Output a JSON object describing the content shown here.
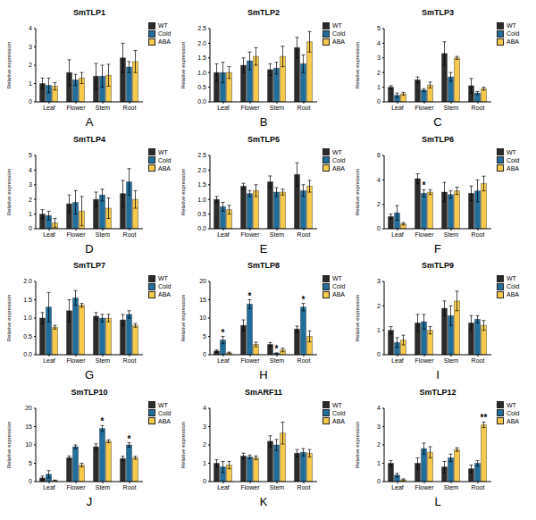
{
  "chart_data": [
    {
      "type": "bar",
      "title": "SmTLP1",
      "panel": "A",
      "y_label": "Relative expression",
      "categories": [
        "Leaf",
        "Flower",
        "Stem",
        "Root"
      ],
      "ylim": [
        0,
        4
      ],
      "yticks": [
        0,
        1,
        2,
        3,
        4
      ],
      "legend": "upper right",
      "series": [
        {
          "name": "WT",
          "color": "#2b2b2b",
          "values": [
            1.0,
            1.6,
            1.4,
            2.4
          ],
          "errors": [
            0.3,
            0.7,
            0.7,
            0.8
          ]
        },
        {
          "name": "Cold",
          "color": "#1f6e9c",
          "values": [
            0.9,
            1.2,
            1.4,
            1.9
          ],
          "errors": [
            0.4,
            0.3,
            0.6,
            0.3
          ]
        },
        {
          "name": "ABA",
          "color": "#f6c94a",
          "values": [
            0.85,
            1.3,
            1.45,
            2.2
          ],
          "errors": [
            0.2,
            0.3,
            0.6,
            0.6
          ]
        }
      ],
      "annotations": []
    },
    {
      "type": "bar",
      "title": "SmTLP2",
      "panel": "B",
      "y_label": "Relative expression",
      "categories": [
        "Leaf",
        "Flower",
        "Stem",
        "Root"
      ],
      "ylim": [
        0,
        2.5
      ],
      "yticks": [
        {
          "value": 0,
          "label": "0.0"
        },
        0.5,
        {
          "value": 1,
          "label": "1.0"
        },
        1.5,
        {
          "value": 2,
          "label": "2.0"
        },
        2.5
      ],
      "legend": "upper right",
      "series": [
        {
          "name": "WT",
          "color": "#2b2b2b",
          "values": [
            1.0,
            1.25,
            1.1,
            1.85
          ],
          "errors": [
            0.3,
            0.25,
            0.2,
            0.35
          ]
        },
        {
          "name": "Cold",
          "color": "#1f6e9c",
          "values": [
            1.0,
            1.4,
            1.15,
            1.3
          ],
          "errors": [
            0.35,
            0.3,
            0.2,
            0.3
          ]
        },
        {
          "name": "ABA",
          "color": "#f6c94a",
          "values": [
            1.0,
            1.55,
            1.55,
            2.05
          ],
          "errors": [
            0.2,
            0.3,
            0.35,
            0.35
          ]
        }
      ],
      "annotations": []
    },
    {
      "type": "bar",
      "title": "SmTLP3",
      "panel": "C",
      "y_label": "Relative expression",
      "categories": [
        "Leaf",
        "Flower",
        "Stem",
        "Root"
      ],
      "ylim": [
        0,
        5
      ],
      "yticks": [
        0,
        1,
        2,
        3,
        4,
        5
      ],
      "legend": "upper right",
      "series": [
        {
          "name": "WT",
          "color": "#2b2b2b",
          "values": [
            1.0,
            1.5,
            3.3,
            1.1
          ],
          "errors": [
            0.1,
            0.2,
            0.8,
            0.5
          ]
        },
        {
          "name": "Cold",
          "color": "#1f6e9c",
          "values": [
            0.45,
            0.8,
            1.7,
            0.6
          ],
          "errors": [
            0.15,
            0.1,
            0.3,
            0.1
          ]
        },
        {
          "name": "ABA",
          "color": "#f6c94a",
          "values": [
            0.55,
            1.15,
            3.0,
            0.9
          ],
          "errors": [
            0.1,
            0.2,
            0.1,
            0.1
          ]
        }
      ],
      "annotations": []
    },
    {
      "type": "bar",
      "title": "SmTLP4",
      "panel": "D",
      "y_label": "Relative expression",
      "categories": [
        "Leaf",
        "Flower",
        "Stem",
        "Root"
      ],
      "ylim": [
        0,
        5
      ],
      "yticks": [
        0,
        1,
        2,
        3,
        4,
        5
      ],
      "legend": "upper right",
      "series": [
        {
          "name": "WT",
          "color": "#2b2b2b",
          "values": [
            1.0,
            1.7,
            2.0,
            2.4
          ],
          "errors": [
            0.3,
            0.6,
            0.5,
            0.9
          ]
        },
        {
          "name": "Cold",
          "color": "#1f6e9c",
          "values": [
            0.9,
            1.8,
            2.3,
            3.2
          ],
          "errors": [
            0.3,
            0.8,
            0.4,
            0.9
          ]
        },
        {
          "name": "ABA",
          "color": "#f6c94a",
          "values": [
            0.4,
            1.2,
            1.4,
            2.0
          ],
          "errors": [
            0.3,
            1.0,
            0.7,
            0.6
          ]
        }
      ],
      "annotations": []
    },
    {
      "type": "bar",
      "title": "SmTLP5",
      "panel": "E",
      "y_label": "Relative expression",
      "categories": [
        "Leaf",
        "Flower",
        "Stem",
        "Root"
      ],
      "ylim": [
        0,
        2.5
      ],
      "yticks": [
        {
          "value": 0,
          "label": "0.0"
        },
        0.5,
        {
          "value": 1,
          "label": "1.0"
        },
        1.5,
        {
          "value": 2,
          "label": "2.0"
        },
        2.5
      ],
      "legend": "upper right",
      "series": [
        {
          "name": "WT",
          "color": "#2b2b2b",
          "values": [
            1.0,
            1.45,
            1.6,
            1.85
          ],
          "errors": [
            0.1,
            0.1,
            0.2,
            0.4
          ]
        },
        {
          "name": "Cold",
          "color": "#1f6e9c",
          "values": [
            0.75,
            1.2,
            1.25,
            1.3
          ],
          "errors": [
            0.15,
            0.1,
            0.15,
            0.2
          ]
        },
        {
          "name": "ABA",
          "color": "#f6c94a",
          "values": [
            0.65,
            1.3,
            1.25,
            1.45
          ],
          "errors": [
            0.15,
            0.2,
            0.1,
            0.2
          ]
        }
      ],
      "annotations": []
    },
    {
      "type": "bar",
      "title": "SmTLP6",
      "panel": "F",
      "y_label": "Relative expression",
      "categories": [
        "Leaf",
        "Flower",
        "Stem",
        "Root"
      ],
      "ylim": [
        0,
        6
      ],
      "yticks": [
        0,
        2,
        4,
        6
      ],
      "legend": "upper right",
      "series": [
        {
          "name": "WT",
          "color": "#2b2b2b",
          "values": [
            1.0,
            4.1,
            3.0,
            2.9
          ],
          "errors": [
            0.2,
            0.4,
            0.8,
            0.6
          ]
        },
        {
          "name": "Cold",
          "color": "#1f6e9c",
          "values": [
            1.3,
            2.9,
            2.8,
            3.1
          ],
          "errors": [
            0.6,
            0.3,
            0.3,
            0.9
          ]
        },
        {
          "name": "ABA",
          "color": "#f6c94a",
          "values": [
            0.4,
            3.0,
            3.1,
            3.7
          ],
          "errors": [
            0.1,
            0.2,
            0.3,
            0.6
          ]
        }
      ],
      "annotations": [
        {
          "series": "Cold",
          "category": "Flower",
          "text": "*"
        }
      ]
    },
    {
      "type": "bar",
      "title": "SmTLP7",
      "panel": "G",
      "y_label": "Relative expression",
      "categories": [
        "Leaf",
        "Flower",
        "Stem",
        "Root"
      ],
      "ylim": [
        0,
        2
      ],
      "yticks": [
        {
          "value": 0,
          "label": "0.0"
        },
        0.5,
        {
          "value": 1,
          "label": "1.0"
        },
        1.5,
        {
          "value": 2,
          "label": "2.0"
        }
      ],
      "legend": "upper right",
      "series": [
        {
          "name": "WT",
          "color": "#2b2b2b",
          "values": [
            1.0,
            1.2,
            1.05,
            0.95
          ],
          "errors": [
            0.15,
            0.3,
            0.1,
            0.15
          ]
        },
        {
          "name": "Cold",
          "color": "#1f6e9c",
          "values": [
            1.3,
            1.55,
            1.0,
            1.1
          ],
          "errors": [
            0.4,
            0.2,
            0.1,
            0.1
          ]
        },
        {
          "name": "ABA",
          "color": "#f6c94a",
          "values": [
            0.75,
            1.35,
            1.0,
            0.8
          ],
          "errors": [
            0.05,
            0.05,
            0.1,
            0.05
          ]
        }
      ],
      "annotations": []
    },
    {
      "type": "bar",
      "title": "SmTLP8",
      "panel": "H",
      "y_label": "Relative expression",
      "categories": [
        "Leaf",
        "Flower",
        "Stem",
        "Root"
      ],
      "ylim": [
        0,
        20
      ],
      "yticks": [
        0,
        5,
        10,
        15,
        20
      ],
      "legend": "upper right",
      "series": [
        {
          "name": "WT",
          "color": "#2b2b2b",
          "values": [
            1.0,
            8.0,
            2.8,
            7.0
          ],
          "errors": [
            0.3,
            1.5,
            0.5,
            0.8
          ]
        },
        {
          "name": "Cold",
          "color": "#1f6e9c",
          "values": [
            4.0,
            13.8,
            0.4,
            13.0
          ],
          "errors": [
            1.0,
            1.2,
            0.1,
            1.0
          ]
        },
        {
          "name": "ABA",
          "color": "#f6c94a",
          "values": [
            0.5,
            2.8,
            1.3,
            5.0
          ],
          "errors": [
            0.2,
            0.6,
            0.5,
            1.5
          ]
        }
      ],
      "annotations": [
        {
          "series": "Cold",
          "category": "Leaf",
          "text": "*"
        },
        {
          "series": "Cold",
          "category": "Flower",
          "text": "*"
        },
        {
          "series": "Cold",
          "category": "Stem",
          "text": "*"
        },
        {
          "series": "Cold",
          "category": "Root",
          "text": "*"
        }
      ]
    },
    {
      "type": "bar",
      "title": "SmTLP9",
      "panel": "I",
      "y_label": "Relative expression",
      "categories": [
        "Leaf",
        "Flower",
        "Stem",
        "Root"
      ],
      "ylim": [
        0,
        3
      ],
      "yticks": [
        0,
        1,
        2,
        3
      ],
      "legend": "upper right",
      "series": [
        {
          "name": "WT",
          "color": "#2b2b2b",
          "values": [
            1.0,
            1.3,
            1.9,
            1.3
          ],
          "errors": [
            0.15,
            0.35,
            0.3,
            0.3
          ]
        },
        {
          "name": "Cold",
          "color": "#1f6e9c",
          "values": [
            0.5,
            1.35,
            1.6,
            1.45
          ],
          "errors": [
            0.2,
            0.3,
            0.4,
            0.15
          ]
        },
        {
          "name": "ABA",
          "color": "#f6c94a",
          "values": [
            0.6,
            1.0,
            2.2,
            1.2
          ],
          "errors": [
            0.2,
            0.15,
            0.4,
            0.2
          ]
        }
      ],
      "annotations": []
    },
    {
      "type": "bar",
      "title": "SmTLP10",
      "panel": "J",
      "y_label": "Relative expression",
      "categories": [
        "Leaf",
        "Flower",
        "Stem",
        "Root"
      ],
      "ylim": [
        0,
        20
      ],
      "yticks": [
        0,
        5,
        10,
        15,
        20
      ],
      "legend": "upper right",
      "series": [
        {
          "name": "WT",
          "color": "#2b2b2b",
          "values": [
            1.0,
            6.5,
            9.5,
            6.3
          ],
          "errors": [
            0.5,
            0.5,
            0.8,
            0.6
          ]
        },
        {
          "name": "Cold",
          "color": "#1f6e9c",
          "values": [
            2.0,
            9.5,
            14.5,
            10.0
          ],
          "errors": [
            1.0,
            0.5,
            0.8,
            0.6
          ]
        },
        {
          "name": "ABA",
          "color": "#f6c94a",
          "values": [
            0.3,
            4.5,
            11.0,
            6.5
          ],
          "errors": [
            0.1,
            0.5,
            0.4,
            0.4
          ]
        }
      ],
      "annotations": [
        {
          "series": "Cold",
          "category": "Stem",
          "text": "*"
        },
        {
          "series": "Cold",
          "category": "Root",
          "text": "*"
        }
      ]
    },
    {
      "type": "bar",
      "title": "SmARF11",
      "panel": "K",
      "y_label": "Relative expression",
      "categories": [
        "Leaf",
        "Flower",
        "Stem",
        "Root"
      ],
      "ylim": [
        0,
        4
      ],
      "yticks": [
        0,
        1,
        2,
        3,
        4
      ],
      "legend": "upper right",
      "series": [
        {
          "name": "WT",
          "color": "#2b2b2b",
          "values": [
            1.0,
            1.4,
            2.2,
            1.55
          ],
          "errors": [
            0.2,
            0.15,
            0.3,
            0.2
          ]
        },
        {
          "name": "Cold",
          "color": "#1f6e9c",
          "values": [
            0.8,
            1.35,
            2.0,
            1.6
          ],
          "errors": [
            0.3,
            0.1,
            0.3,
            0.2
          ]
        },
        {
          "name": "ABA",
          "color": "#f6c94a",
          "values": [
            0.9,
            1.3,
            2.65,
            1.55
          ],
          "errors": [
            0.2,
            0.1,
            0.6,
            0.2
          ]
        }
      ],
      "annotations": []
    },
    {
      "type": "bar",
      "title": "SmTLP12",
      "panel": "L",
      "y_label": "Relative expression",
      "categories": [
        "Leaf",
        "Flower",
        "Stem",
        "Root"
      ],
      "ylim": [
        0,
        4
      ],
      "yticks": [
        0,
        1,
        2,
        3,
        4
      ],
      "legend": "upper right",
      "series": [
        {
          "name": "WT",
          "color": "#2b2b2b",
          "values": [
            1.0,
            1.0,
            0.8,
            0.7
          ],
          "errors": [
            0.15,
            0.3,
            0.3,
            0.2
          ]
        },
        {
          "name": "Cold",
          "color": "#1f6e9c",
          "values": [
            0.35,
            1.8,
            1.3,
            1.0
          ],
          "errors": [
            0.1,
            0.3,
            0.2,
            0.15
          ]
        },
        {
          "name": "ABA",
          "color": "#f6c94a",
          "values": [
            0.1,
            1.6,
            1.75,
            3.1
          ],
          "errors": [
            0.05,
            0.3,
            0.1,
            0.15
          ]
        }
      ],
      "annotations": [
        {
          "series": "ABA",
          "category": "Root",
          "text": "**"
        }
      ]
    }
  ]
}
